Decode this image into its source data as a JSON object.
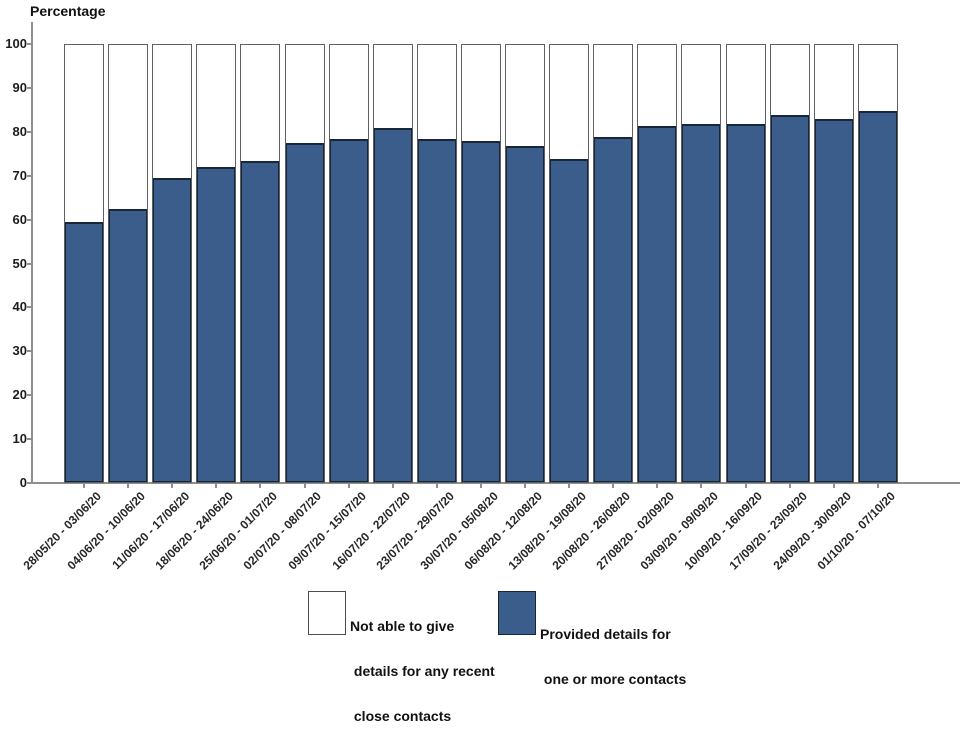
{
  "chart": {
    "axis_title": "Percentage",
    "y_tick_labels": [
      "0",
      "10",
      "20",
      "30",
      "40",
      "50",
      "60",
      "70",
      "80",
      "90",
      "100"
    ]
  },
  "chart_data": {
    "type": "bar",
    "stacked": true,
    "title": "",
    "ylabel": "Percentage",
    "xlabel": "",
    "ylim": [
      0,
      100
    ],
    "y_tick_interval": 10,
    "grid": false,
    "legend_position": "bottom",
    "categories": [
      "28/05/20 - 03/06/20",
      "04/06/20 - 10/06/20",
      "11/06/20 - 17/06/20",
      "18/06/20 - 24/06/20",
      "25/06/20 - 01/07/20",
      "02/07/20 - 08/07/20",
      "09/07/20 - 15/07/20",
      "16/07/20 - 22/07/20",
      "23/07/20 - 29/07/20",
      "30/07/20 - 05/08/20",
      "06/08/20 - 12/08/20",
      "13/08/20 - 19/08/20",
      "20/08/20 - 26/08/20",
      "27/08/20 - 02/09/20",
      "03/09/20 - 09/09/20",
      "10/09/20 - 16/09/20",
      "17/09/20 - 23/09/20",
      "24/09/20 - 30/09/20",
      "01/10/20 - 07/10/20"
    ],
    "series": [
      {
        "name": "Provided details for one or more contacts",
        "color": "#3a5d8c",
        "values": [
          59.5,
          62.5,
          69.5,
          72,
          73.5,
          77.5,
          78.5,
          81,
          78.5,
          78,
          77,
          74,
          79,
          81.5,
          82,
          82,
          84,
          83,
          85
        ]
      },
      {
        "name": "Not able to give details for any recent close contacts",
        "color": "#ffffff",
        "values": [
          40.5,
          37.5,
          30.5,
          28,
          26.5,
          22.5,
          21.5,
          19,
          21.5,
          22,
          23,
          26,
          21,
          18.5,
          18,
          18,
          16,
          17,
          15
        ]
      }
    ]
  },
  "legend": {
    "items": [
      {
        "swatch": "white",
        "lines": [
          "Not able to give",
          " details for any recent",
          " close contacts"
        ]
      },
      {
        "swatch": "blue",
        "lines": [
          "Provided details for",
          " one or more contacts"
        ]
      }
    ]
  },
  "colors": {
    "bar_fill": "#3a5d8c",
    "bar_fill_border": "#18263a",
    "bar_frame_border": "#606060",
    "axis": "#8f8f8f",
    "tick_text": "#1c1c1c",
    "label_text": "#262626"
  }
}
